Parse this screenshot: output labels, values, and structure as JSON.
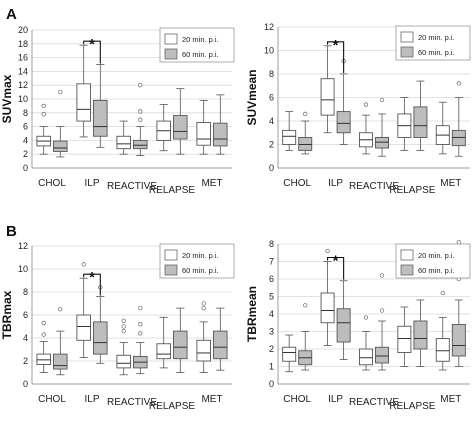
{
  "chart_data": [
    {
      "panel": "A",
      "type": "boxplot",
      "ylabel": "SUVmax",
      "ylim": [
        0,
        20
      ],
      "yticks": [
        0,
        2,
        4,
        6,
        8,
        10,
        12,
        14,
        16,
        18,
        20
      ],
      "categories": [
        "CHOL",
        "ILP",
        "REACTIVE",
        "RELAPSE",
        "MET"
      ],
      "legend": [
        "20 min. p.i.",
        "60 min. p.i."
      ],
      "colors": [
        "#ffffff",
        "#bdbdbd"
      ],
      "significance": {
        "category": "ILP",
        "label": "*"
      },
      "series": [
        {
          "name": "20 min. p.i.",
          "boxes": [
            {
              "min": 2.0,
              "q1": 3.2,
              "median": 3.9,
              "q3": 4.6,
              "max": 6.0,
              "outliers": [
                7.8,
                9.0
              ]
            },
            {
              "min": 4.5,
              "q1": 6.8,
              "median": 8.5,
              "q3": 12.2,
              "max": 17.8,
              "outliers": []
            },
            {
              "min": 2.0,
              "q1": 2.8,
              "median": 3.5,
              "q3": 4.6,
              "max": 6.8,
              "outliers": []
            },
            {
              "min": 2.5,
              "q1": 4.0,
              "median": 5.4,
              "q3": 6.8,
              "max": 9.2,
              "outliers": []
            },
            {
              "min": 2.0,
              "q1": 3.3,
              "median": 4.2,
              "q3": 6.6,
              "max": 9.8,
              "outliers": []
            }
          ]
        },
        {
          "name": "60 min. p.i.",
          "boxes": [
            {
              "min": 1.6,
              "q1": 2.4,
              "median": 2.9,
              "q3": 3.9,
              "max": 6.0,
              "outliers": [
                11.0
              ]
            },
            {
              "min": 3.0,
              "q1": 4.6,
              "median": 6.0,
              "q3": 9.8,
              "max": 15.0,
              "outliers": []
            },
            {
              "min": 1.8,
              "q1": 2.8,
              "median": 3.3,
              "q3": 4.0,
              "max": 6.0,
              "outliers": [
                7.0,
                8.2,
                12.0
              ]
            },
            {
              "min": 2.0,
              "q1": 4.2,
              "median": 5.3,
              "q3": 7.6,
              "max": 11.5,
              "outliers": []
            },
            {
              "min": 2.0,
              "q1": 3.2,
              "median": 4.2,
              "q3": 6.5,
              "max": 10.6,
              "outliers": []
            }
          ]
        }
      ]
    },
    {
      "panel": "",
      "type": "boxplot",
      "ylabel": "SUVmean",
      "ylim": [
        0,
        12
      ],
      "yticks": [
        0,
        2,
        4,
        6,
        8,
        10,
        12
      ],
      "categories": [
        "CHOL",
        "ILP",
        "REACTIVE",
        "RELAPSE",
        "MET"
      ],
      "legend": [
        "20 min. p.i.",
        "60 min. p.i."
      ],
      "colors": [
        "#ffffff",
        "#bdbdbd"
      ],
      "significance": {
        "category": "ILP",
        "label": "*"
      },
      "series": [
        {
          "name": "20 min. p.i.",
          "boxes": [
            {
              "min": 1.5,
              "q1": 2.0,
              "median": 2.7,
              "q3": 3.2,
              "max": 4.8,
              "outliers": []
            },
            {
              "min": 3.0,
              "q1": 4.5,
              "median": 5.8,
              "q3": 7.6,
              "max": 10.4,
              "outliers": []
            },
            {
              "min": 1.2,
              "q1": 1.8,
              "median": 2.4,
              "q3": 3.0,
              "max": 4.5,
              "outliers": [
                5.4
              ]
            },
            {
              "min": 1.5,
              "q1": 2.6,
              "median": 3.6,
              "q3": 4.6,
              "max": 6.0,
              "outliers": [
                9.4
              ]
            },
            {
              "min": 1.2,
              "q1": 2.0,
              "median": 2.8,
              "q3": 3.6,
              "max": 5.6,
              "outliers": []
            }
          ]
        },
        {
          "name": "60 min. p.i.",
          "boxes": [
            {
              "min": 1.2,
              "q1": 1.5,
              "median": 2.0,
              "q3": 2.6,
              "max": 4.0,
              "outliers": [
                4.6
              ]
            },
            {
              "min": 2.0,
              "q1": 3.0,
              "median": 3.8,
              "q3": 4.8,
              "max": 8.0,
              "outliers": [
                9.1
              ]
            },
            {
              "min": 1.0,
              "q1": 1.7,
              "median": 2.2,
              "q3": 2.6,
              "max": 4.6,
              "outliers": [
                5.8
              ]
            },
            {
              "min": 1.5,
              "q1": 2.6,
              "median": 3.6,
              "q3": 5.2,
              "max": 7.4,
              "outliers": []
            },
            {
              "min": 1.0,
              "q1": 1.9,
              "median": 2.6,
              "q3": 3.2,
              "max": 6.0,
              "outliers": [
                7.2
              ]
            }
          ]
        }
      ]
    },
    {
      "panel": "B",
      "type": "boxplot",
      "ylabel": "TBRmax",
      "ylim": [
        0,
        12
      ],
      "yticks": [
        0,
        2,
        4,
        6,
        8,
        10,
        12
      ],
      "categories": [
        "CHOL",
        "ILP",
        "REACTIVE",
        "RELAPSE",
        "MET"
      ],
      "legend": [
        "20 min. p.i.",
        "60 min. p.i."
      ],
      "colors": [
        "#ffffff",
        "#bdbdbd"
      ],
      "significance": {
        "category": "ILP",
        "label": "*"
      },
      "series": [
        {
          "name": "20 min. p.i.",
          "boxes": [
            {
              "min": 1.0,
              "q1": 1.7,
              "median": 2.1,
              "q3": 2.6,
              "max": 3.7,
              "outliers": [
                4.3,
                5.3
              ]
            },
            {
              "min": 2.3,
              "q1": 3.8,
              "median": 5.0,
              "q3": 6.0,
              "max": 9.2,
              "outliers": [
                10.4
              ]
            },
            {
              "min": 0.8,
              "q1": 1.4,
              "median": 1.8,
              "q3": 2.5,
              "max": 3.6,
              "outliers": [
                4.6,
                5.0,
                5.5
              ]
            },
            {
              "min": 1.4,
              "q1": 2.2,
              "median": 2.6,
              "q3": 3.5,
              "max": 5.8,
              "outliers": []
            },
            {
              "min": 1.0,
              "q1": 2.0,
              "median": 2.7,
              "q3": 3.8,
              "max": 5.4,
              "outliers": [
                6.6,
                7.0
              ]
            }
          ]
        },
        {
          "name": "60 min. p.i.",
          "boxes": [
            {
              "min": 0.8,
              "q1": 1.3,
              "median": 1.6,
              "q3": 2.6,
              "max": 4.6,
              "outliers": [
                6.5
              ]
            },
            {
              "min": 1.8,
              "q1": 2.6,
              "median": 3.6,
              "q3": 5.4,
              "max": 7.6,
              "outliers": [
                8.4
              ]
            },
            {
              "min": 0.9,
              "q1": 1.4,
              "median": 1.9,
              "q3": 2.4,
              "max": 3.6,
              "outliers": [
                4.4,
                5.2,
                6.6
              ]
            },
            {
              "min": 1.0,
              "q1": 2.2,
              "median": 3.2,
              "q3": 4.6,
              "max": 6.6,
              "outliers": []
            },
            {
              "min": 1.2,
              "q1": 2.2,
              "median": 3.2,
              "q3": 4.6,
              "max": 6.6,
              "outliers": []
            }
          ]
        }
      ]
    },
    {
      "panel": "",
      "type": "boxplot",
      "ylabel": "TBRmean",
      "ylim": [
        0,
        8
      ],
      "yticks": [
        0,
        1,
        2,
        3,
        4,
        5,
        6,
        7,
        8
      ],
      "categories": [
        "CHOL",
        "ILP",
        "REACTIVE",
        "RELAPSE",
        "MET"
      ],
      "legend": [
        "20 min. p.i.",
        "60 min. p.i."
      ],
      "colors": [
        "#ffffff",
        "#bdbdbd"
      ],
      "significance": {
        "category": "ILP",
        "label": "*"
      },
      "series": [
        {
          "name": "20 min. p.i.",
          "boxes": [
            {
              "min": 0.7,
              "q1": 1.3,
              "median": 1.8,
              "q3": 2.1,
              "max": 2.8,
              "outliers": []
            },
            {
              "min": 2.2,
              "q1": 3.5,
              "median": 4.2,
              "q3": 5.2,
              "max": 7.0,
              "outliers": [
                7.6
              ]
            },
            {
              "min": 0.8,
              "q1": 1.1,
              "median": 1.5,
              "q3": 2.0,
              "max": 3.0,
              "outliers": [
                3.8
              ]
            },
            {
              "min": 1.0,
              "q1": 1.8,
              "median": 2.6,
              "q3": 3.3,
              "max": 4.4,
              "outliers": []
            },
            {
              "min": 0.8,
              "q1": 1.3,
              "median": 1.9,
              "q3": 2.6,
              "max": 3.8,
              "outliers": [
                5.2,
                6.4
              ]
            }
          ]
        },
        {
          "name": "60 min. p.i.",
          "boxes": [
            {
              "min": 0.8,
              "q1": 1.1,
              "median": 1.5,
              "q3": 1.9,
              "max": 3.0,
              "outliers": [
                4.5
              ]
            },
            {
              "min": 1.4,
              "q1": 2.4,
              "median": 3.5,
              "q3": 4.3,
              "max": 5.9,
              "outliers": []
            },
            {
              "min": 0.8,
              "q1": 1.2,
              "median": 1.6,
              "q3": 2.1,
              "max": 3.6,
              "outliers": [
                4.2,
                6.2
              ]
            },
            {
              "min": 1.0,
              "q1": 2.0,
              "median": 2.6,
              "q3": 3.6,
              "max": 4.8,
              "outliers": []
            },
            {
              "min": 1.0,
              "q1": 1.6,
              "median": 2.2,
              "q3": 3.4,
              "max": 4.8,
              "outliers": [
                6.0,
                8.1
              ]
            }
          ]
        }
      ]
    }
  ]
}
